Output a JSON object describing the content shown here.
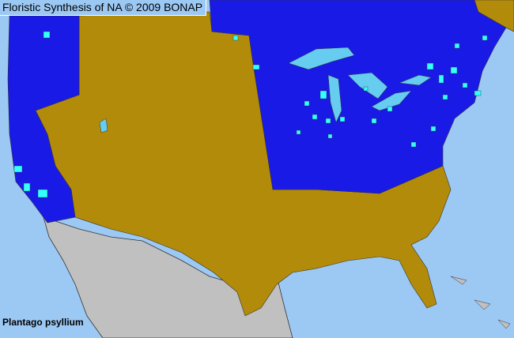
{
  "header": {
    "title": "Floristic Synthesis of NA © 2009 BONAP"
  },
  "species": {
    "name": "Plantago psyllium"
  },
  "colors": {
    "ocean": "#9cc8f4",
    "present_native": "#1a1ae6",
    "absent": "#b38b0a",
    "county_present": "#33ffff",
    "lakes": "#66ccf0",
    "outside_range": "#c0c0c0",
    "borders": "#333333"
  },
  "legend_meaning": []
}
